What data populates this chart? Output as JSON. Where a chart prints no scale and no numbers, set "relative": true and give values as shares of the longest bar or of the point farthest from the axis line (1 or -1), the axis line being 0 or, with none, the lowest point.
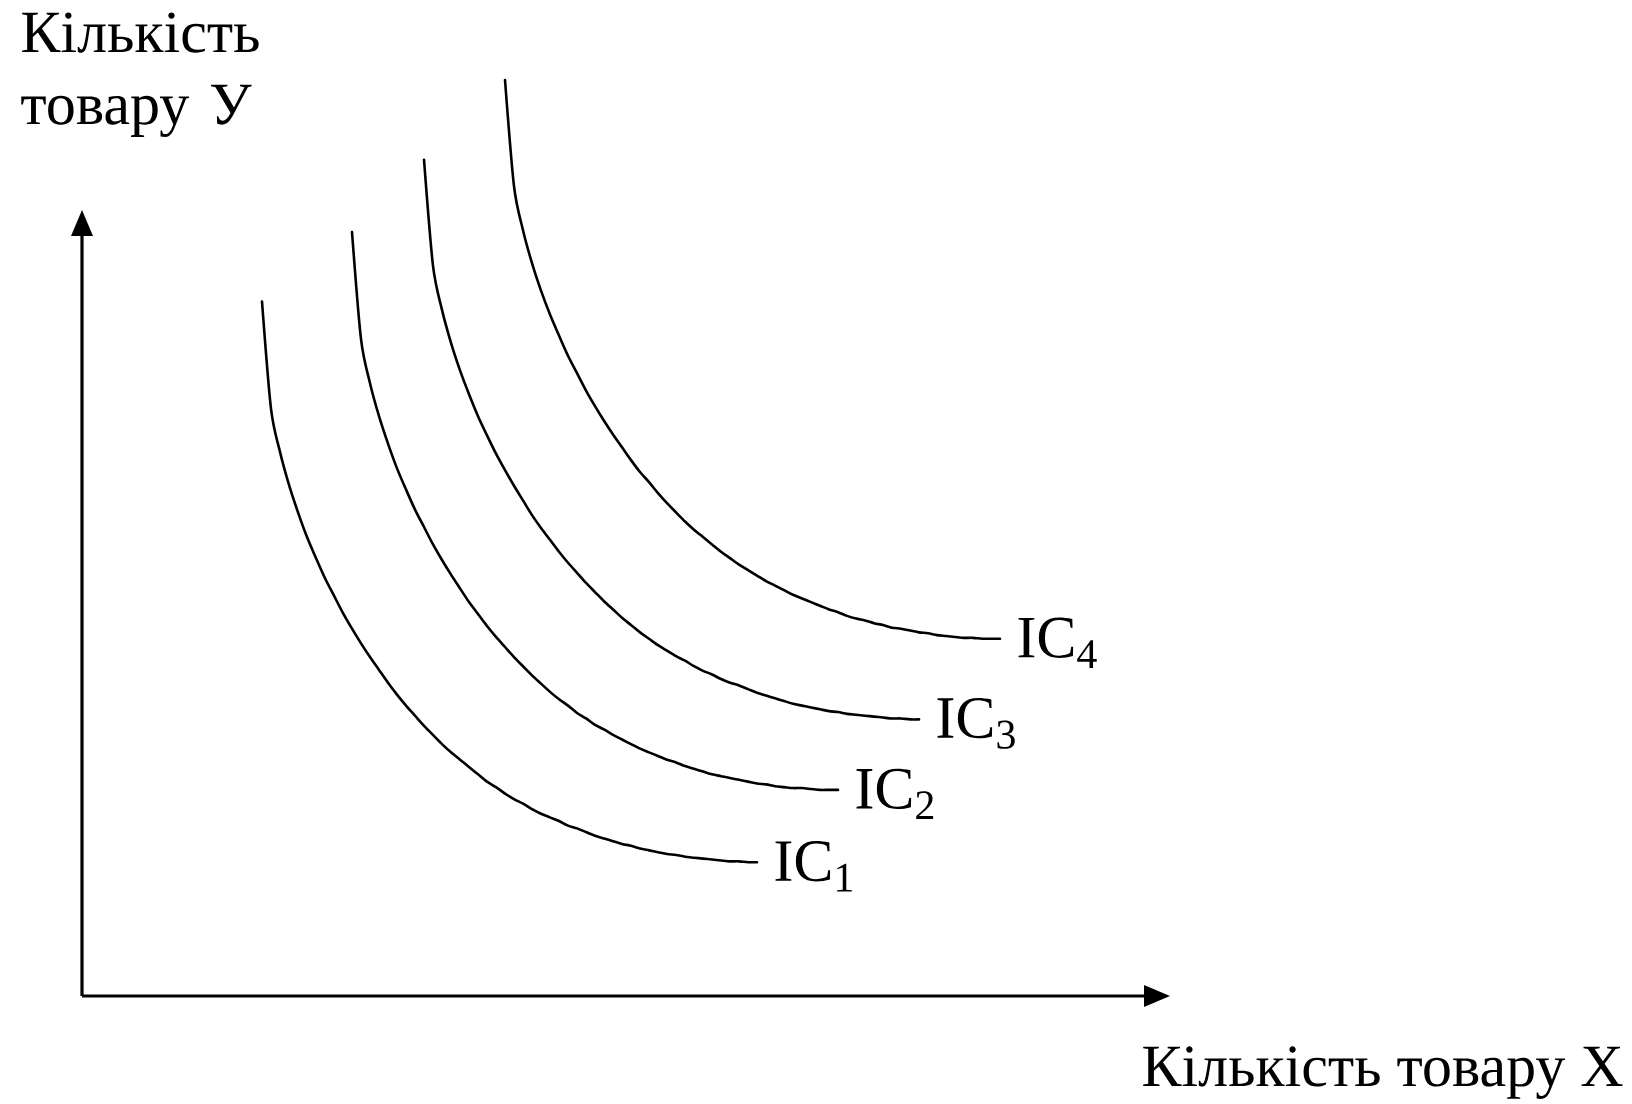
{
  "chart_data": {
    "type": "line",
    "relative": true,
    "xlabel": "Кількість товару Х",
    "ylabel": "Кількість товару У",
    "categories": [
      null,
      null,
      null,
      null,
      null,
      null,
      null,
      null,
      null,
      null,
      null,
      null,
      null,
      null,
      null,
      null,
      null,
      null,
      null,
      null,
      null,
      null,
      null,
      null,
      null,
      null,
      null,
      null,
      null,
      null,
      null,
      null,
      null,
      null,
      null,
      null,
      null,
      null,
      null,
      null,
      null,
      null,
      null,
      null,
      null,
      null,
      null,
      null,
      null,
      null,
      null,
      null,
      null,
      null,
      null,
      null,
      null,
      null,
      null,
      null,
      null,
      null,
      null,
      null,
      null,
      null,
      null,
      null,
      null,
      null,
      null,
      null,
      null,
      null,
      null,
      null,
      null,
      null,
      null,
      null,
      null,
      null,
      null,
      null,
      null,
      null,
      null,
      null,
      null,
      null,
      null,
      null,
      null,
      null,
      null,
      null,
      null,
      null,
      null,
      null,
      null,
      null,
      null
    ],
    "series": [
      {
        "name": "IC$_{1}$",
        "color": "#000000",
        "values": [
          null,
          null,
          null,
          null,
          null,
          null,
          null,
          null,
          null,
          null,
          null,
          null,
          null,
          null,
          null,
          null,
          null,
          null,
          null,
          null,
          0.758,
          0.641,
          0.594,
          0.558,
          0.528,
          0.501,
          0.478,
          0.456,
          0.437,
          0.418,
          0.401,
          0.385,
          0.37,
          0.356,
          0.342,
          0.329,
          0.317,
          0.306,
          0.295,
          0.285,
          0.275,
          0.266,
          0.258,
          0.25,
          0.242,
          0.234,
          0.228,
          0.221,
          0.215,
          0.21,
          0.204,
          0.199,
          0.195,
          0.191,
          0.186,
          0.183,
          0.179,
          0.175,
          0.172,
          0.169,
          0.166,
          0.164,
          0.161,
          0.159,
          0.157,
          0.155,
          0.154,
          0.152,
          0.151,
          0.15,
          0.149,
          0.148,
          0.147,
          0.147,
          0.146,
          0.146,
          null,
          null,
          null,
          null,
          null,
          null,
          null,
          null,
          null,
          null,
          null,
          null,
          null,
          null,
          null,
          null,
          null,
          null,
          null,
          null,
          null,
          null,
          null,
          null,
          null,
          null,
          null
        ]
      },
      {
        "name": "IC$_{2}$",
        "color": "#000000",
        "values": [
          null,
          null,
          null,
          null,
          null,
          null,
          null,
          null,
          null,
          null,
          null,
          null,
          null,
          null,
          null,
          null,
          null,
          null,
          null,
          null,
          null,
          null,
          null,
          null,
          null,
          null,
          null,
          null,
          null,
          null,
          0.834,
          0.717,
          0.669,
          0.633,
          0.603,
          0.576,
          0.553,
          0.531,
          0.512,
          0.493,
          0.476,
          0.46,
          0.445,
          0.43,
          0.417,
          0.404,
          0.392,
          0.381,
          0.37,
          0.36,
          0.35,
          0.341,
          0.332,
          0.324,
          0.317,
          0.309,
          0.303,
          0.296,
          0.291,
          0.285,
          0.28,
          0.275,
          0.27,
          0.266,
          0.262,
          0.258,
          0.255,
          0.251,
          0.248,
          0.245,
          0.242,
          0.24,
          0.238,
          0.236,
          0.234,
          0.232,
          0.231,
          0.229,
          0.228,
          0.227,
          0.227,
          0.226,
          0.225,
          0.225,
          0.225,
          null,
          null,
          null,
          null,
          null,
          null,
          null,
          null,
          null,
          null,
          null,
          null,
          null,
          null,
          null,
          null,
          null,
          null
        ]
      },
      {
        "name": "IC$_{3}$",
        "color": "#000000",
        "values": [
          null,
          null,
          null,
          null,
          null,
          null,
          null,
          null,
          null,
          null,
          null,
          null,
          null,
          null,
          null,
          null,
          null,
          null,
          null,
          null,
          null,
          null,
          null,
          null,
          null,
          null,
          null,
          null,
          null,
          null,
          null,
          null,
          null,
          null,
          null,
          null,
          null,
          null,
          0.913,
          0.797,
          0.749,
          0.713,
          0.683,
          0.657,
          0.633,
          0.612,
          0.592,
          0.574,
          0.557,
          0.541,
          0.525,
          0.511,
          0.498,
          0.485,
          0.473,
          0.462,
          0.451,
          0.441,
          0.431,
          0.422,
          0.413,
          0.405,
          0.397,
          0.39,
          0.383,
          0.377,
          0.371,
          0.366,
          0.36,
          0.355,
          0.351,
          0.346,
          0.342,
          0.339,
          0.335,
          0.331,
          0.328,
          0.325,
          0.322,
          0.319,
          0.317,
          0.315,
          0.313,
          0.311,
          0.31,
          0.308,
          0.307,
          0.306,
          0.305,
          0.304,
          0.303,
          0.303,
          0.302,
          0.302,
          null,
          null,
          null,
          null,
          null,
          null,
          null,
          null,
          null
        ]
      },
      {
        "name": "IC$_{4}$",
        "color": "#000000",
        "values": [
          null,
          null,
          null,
          null,
          null,
          null,
          null,
          null,
          null,
          null,
          null,
          null,
          null,
          null,
          null,
          null,
          null,
          null,
          null,
          null,
          null,
          null,
          null,
          null,
          null,
          null,
          null,
          null,
          null,
          null,
          null,
          null,
          null,
          null,
          null,
          null,
          null,
          null,
          null,
          null,
          null,
          null,
          null,
          null,
          null,
          null,
          null,
          1.0,
          0.884,
          0.836,
          0.8,
          0.77,
          0.744,
          0.721,
          0.699,
          0.68,
          0.661,
          0.644,
          0.628,
          0.613,
          0.599,
          0.585,
          0.572,
          0.561,
          0.549,
          0.538,
          0.528,
          0.518,
          0.509,
          0.501,
          0.493,
          0.485,
          0.478,
          0.471,
          0.465,
          0.459,
          0.453,
          0.448,
          0.443,
          0.438,
          0.434,
          0.43,
          0.426,
          0.422,
          0.419,
          0.415,
          0.412,
          0.41,
          0.407,
          0.405,
          0.402,
          0.401,
          0.399,
          0.397,
          0.396,
          0.394,
          0.393,
          0.392,
          0.391,
          0.391,
          0.39,
          0.39,
          0.39
        ]
      }
    ]
  }
}
